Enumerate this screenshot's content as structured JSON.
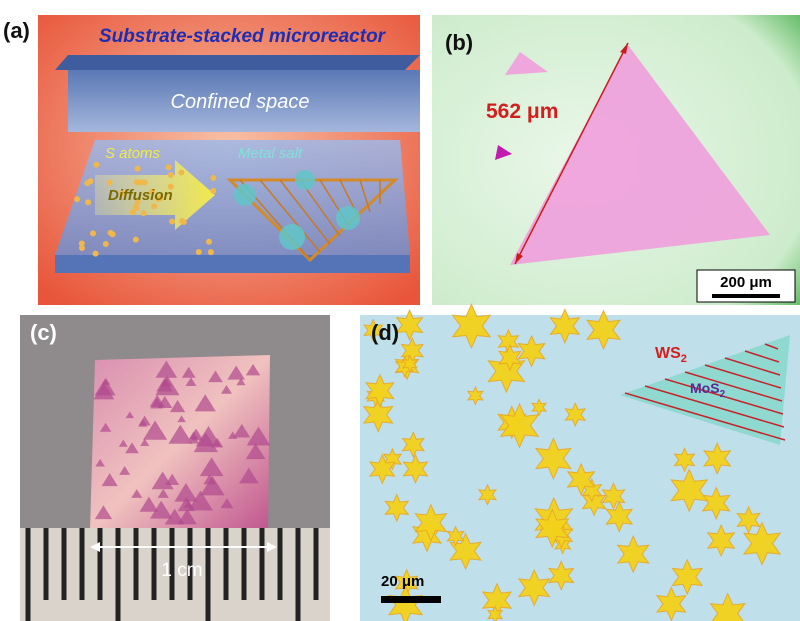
{
  "panels": [
    {
      "label": "(a)",
      "title": "Substrate-stacked microreactor",
      "texts": [
        "Confined space",
        "S atoms",
        "Metal salt",
        "Diffusion"
      ]
    },
    {
      "label": "(b)",
      "measurement": "562 μm",
      "scale_bar": "200 μm"
    },
    {
      "label": "(c)",
      "scale_bar": "1 cm"
    },
    {
      "label": "(d)",
      "materials": [
        {
          "text": "WS",
          "subscript": "2"
        },
        {
          "text": "MoS",
          "subscript": "2"
        }
      ],
      "scale_bar": "20 μm"
    }
  ]
}
